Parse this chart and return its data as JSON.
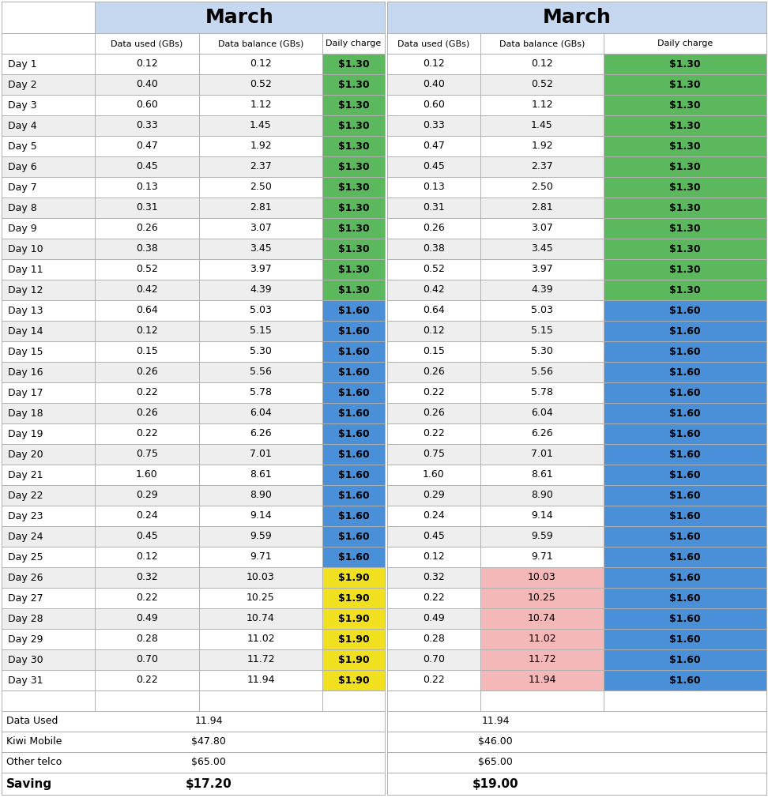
{
  "days": [
    "Day 1",
    "Day 2",
    "Day 3",
    "Day 4",
    "Day 5",
    "Day 6",
    "Day 7",
    "Day 8",
    "Day 9",
    "Day 10",
    "Day 11",
    "Day 12",
    "Day 13",
    "Day 14",
    "Day 15",
    "Day 16",
    "Day 17",
    "Day 18",
    "Day 19",
    "Day 20",
    "Day 21",
    "Day 22",
    "Day 23",
    "Day 24",
    "Day 25",
    "Day 26",
    "Day 27",
    "Day 28",
    "Day 29",
    "Day 30",
    "Day 31"
  ],
  "data_used": [
    0.12,
    0.4,
    0.6,
    0.33,
    0.47,
    0.45,
    0.13,
    0.31,
    0.26,
    0.38,
    0.52,
    0.42,
    0.64,
    0.12,
    0.15,
    0.26,
    0.22,
    0.26,
    0.22,
    0.75,
    1.6,
    0.29,
    0.24,
    0.45,
    0.12,
    0.32,
    0.22,
    0.49,
    0.28,
    0.7,
    0.22
  ],
  "data_balance": [
    0.12,
    0.52,
    1.12,
    1.45,
    1.92,
    2.37,
    2.5,
    2.81,
    3.07,
    3.45,
    3.97,
    4.39,
    5.03,
    5.15,
    5.3,
    5.56,
    5.78,
    6.04,
    6.26,
    7.01,
    8.61,
    8.9,
    9.14,
    9.59,
    9.71,
    10.03,
    10.25,
    10.74,
    11.02,
    11.72,
    11.94
  ],
  "left_daily_charge": [
    "$1.30",
    "$1.30",
    "$1.30",
    "$1.30",
    "$1.30",
    "$1.30",
    "$1.30",
    "$1.30",
    "$1.30",
    "$1.30",
    "$1.30",
    "$1.30",
    "$1.60",
    "$1.60",
    "$1.60",
    "$1.60",
    "$1.60",
    "$1.60",
    "$1.60",
    "$1.60",
    "$1.60",
    "$1.60",
    "$1.60",
    "$1.60",
    "$1.60",
    "$1.90",
    "$1.90",
    "$1.90",
    "$1.90",
    "$1.90",
    "$1.90"
  ],
  "right_daily_charge": [
    "$1.30",
    "$1.30",
    "$1.30",
    "$1.30",
    "$1.30",
    "$1.30",
    "$1.30",
    "$1.30",
    "$1.30",
    "$1.30",
    "$1.30",
    "$1.30",
    "$1.60",
    "$1.60",
    "$1.60",
    "$1.60",
    "$1.60",
    "$1.60",
    "$1.60",
    "$1.60",
    "$1.60",
    "$1.60",
    "$1.60",
    "$1.60",
    "$1.60",
    "$1.60",
    "$1.60",
    "$1.60",
    "$1.60",
    "$1.60",
    "$1.60"
  ],
  "left_charge_colors": [
    "#5cb85c",
    "#5cb85c",
    "#5cb85c",
    "#5cb85c",
    "#5cb85c",
    "#5cb85c",
    "#5cb85c",
    "#5cb85c",
    "#5cb85c",
    "#5cb85c",
    "#5cb85c",
    "#5cb85c",
    "#4a90d9",
    "#4a90d9",
    "#4a90d9",
    "#4a90d9",
    "#4a90d9",
    "#4a90d9",
    "#4a90d9",
    "#4a90d9",
    "#4a90d9",
    "#4a90d9",
    "#4a90d9",
    "#4a90d9",
    "#4a90d9",
    "#f0e020",
    "#f0e020",
    "#f0e020",
    "#f0e020",
    "#f0e020",
    "#f0e020"
  ],
  "right_charge_colors": [
    "#5cb85c",
    "#5cb85c",
    "#5cb85c",
    "#5cb85c",
    "#5cb85c",
    "#5cb85c",
    "#5cb85c",
    "#5cb85c",
    "#5cb85c",
    "#5cb85c",
    "#5cb85c",
    "#5cb85c",
    "#4a90d9",
    "#4a90d9",
    "#4a90d9",
    "#4a90d9",
    "#4a90d9",
    "#4a90d9",
    "#4a90d9",
    "#4a90d9",
    "#4a90d9",
    "#4a90d9",
    "#4a90d9",
    "#4a90d9",
    "#4a90d9",
    "#4a90d9",
    "#4a90d9",
    "#4a90d9",
    "#4a90d9",
    "#4a90d9",
    "#4a90d9"
  ],
  "right_balance_colors": [
    "#ffffff",
    "#ffffff",
    "#ffffff",
    "#ffffff",
    "#ffffff",
    "#ffffff",
    "#ffffff",
    "#ffffff",
    "#ffffff",
    "#ffffff",
    "#ffffff",
    "#ffffff",
    "#ffffff",
    "#ffffff",
    "#ffffff",
    "#ffffff",
    "#ffffff",
    "#ffffff",
    "#ffffff",
    "#ffffff",
    "#ffffff",
    "#ffffff",
    "#ffffff",
    "#ffffff",
    "#ffffff",
    "#f5b8b8",
    "#f5b8b8",
    "#f5b8b8",
    "#f5b8b8",
    "#f5b8b8",
    "#f5b8b8"
  ],
  "header_bg": "#c5d8f0",
  "col1_header": "March",
  "col2_header": "March",
  "subheaders": [
    "Data used (GBs)",
    "Data balance (GBs)",
    "Daily charge"
  ],
  "summary_rows": [
    {
      "label": "Data Used",
      "left_val": "11.94",
      "right_val": "11.94",
      "bold": false
    },
    {
      "label": "Kiwi Mobile",
      "left_val": "$47.80",
      "right_val": "$46.00",
      "bold": false
    },
    {
      "label": "Other telco",
      "left_val": "$65.00",
      "right_val": "$65.00",
      "bold": false
    },
    {
      "label": "Saving",
      "left_val": "$17.20",
      "right_val": "$19.00",
      "bold": true
    }
  ],
  "grid_color": "#b0b0b0",
  "row_alt_color": "#eeeeee",
  "row_white": "#ffffff"
}
